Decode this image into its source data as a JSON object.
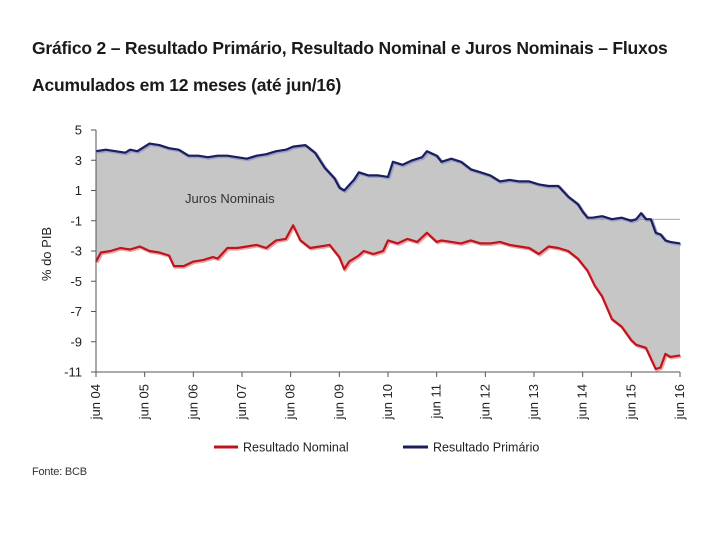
{
  "title": "Gráfico 2 – Resultado Primário, Resultado Nominal e Juros Nominais – Fluxos Acumulados em 12 meses (até jun/16)",
  "source": "Fonte: BCB",
  "chart_data": {
    "type": "area",
    "title": "Gráfico 2 – Resultado Primário, Resultado Nominal e Juros Nominais – Fluxos Acumulados em 12 meses (até jun/16)",
    "xlabel": "",
    "ylabel": "% do PIB",
    "ylim": [
      -11,
      5
    ],
    "yticks": [
      5,
      3,
      1,
      -1,
      -3,
      -5,
      -7,
      -9,
      -11
    ],
    "xlim": [
      2004.5,
      2016.5
    ],
    "xtick_labels": [
      "jun 04",
      "jun 05",
      "jun 06",
      "jun 07",
      "jun 08",
      "jun 09",
      "jun 10",
      "jun 11",
      "jun 12",
      "jun 13",
      "jun 14",
      "jun 15",
      "jun 16"
    ],
    "xtick_values": [
      2004.5,
      2005.5,
      2006.5,
      2007.5,
      2008.5,
      2009.5,
      2010.5,
      2011.5,
      2012.5,
      2013.5,
      2014.5,
      2015.5,
      2016.5
    ],
    "area_label": "Juros Nominais",
    "legend_position": "bottom",
    "colors": {
      "nominal": "#c0141c",
      "primario": "#1a1f5c",
      "juros": "#c6c6c6",
      "axis": "#555555"
    },
    "series": [
      {
        "name": "Resultado Nominal",
        "key": "nominal",
        "x": [
          2004.5,
          2004.6,
          2004.8,
          2005.0,
          2005.2,
          2005.4,
          2005.6,
          2005.8,
          2006.0,
          2006.1,
          2006.3,
          2006.5,
          2006.7,
          2006.9,
          2007.0,
          2007.2,
          2007.4,
          2007.6,
          2007.8,
          2008.0,
          2008.2,
          2008.4,
          2008.55,
          2008.7,
          2008.9,
          2009.1,
          2009.3,
          2009.5,
          2009.6,
          2009.7,
          2009.9,
          2010.0,
          2010.2,
          2010.4,
          2010.5,
          2010.7,
          2010.9,
          2011.1,
          2011.3,
          2011.5,
          2011.6,
          2011.8,
          2012.0,
          2012.2,
          2012.4,
          2012.6,
          2012.8,
          2013.0,
          2013.2,
          2013.4,
          2013.6,
          2013.8,
          2014.0,
          2014.2,
          2014.4,
          2014.6,
          2014.75,
          2014.9,
          2015.1,
          2015.3,
          2015.5,
          2015.6,
          2015.8,
          2015.9,
          2016.0,
          2016.1,
          2016.2,
          2016.3,
          2016.5
        ],
        "values": [
          -3.7,
          -3.1,
          -3.0,
          -2.8,
          -2.9,
          -2.7,
          -3.0,
          -3.1,
          -3.3,
          -4.0,
          -4.0,
          -3.7,
          -3.6,
          -3.4,
          -3.5,
          -2.8,
          -2.8,
          -2.7,
          -2.6,
          -2.8,
          -2.3,
          -2.2,
          -1.3,
          -2.3,
          -2.8,
          -2.7,
          -2.6,
          -3.4,
          -4.2,
          -3.7,
          -3.3,
          -3.0,
          -3.2,
          -3.0,
          -2.3,
          -2.5,
          -2.2,
          -2.4,
          -1.8,
          -2.4,
          -2.3,
          -2.4,
          -2.5,
          -2.3,
          -2.5,
          -2.5,
          -2.4,
          -2.6,
          -2.7,
          -2.8,
          -3.2,
          -2.7,
          -2.8,
          -3.0,
          -3.5,
          -4.3,
          -5.3,
          -6.0,
          -7.5,
          -8.0,
          -8.9,
          -9.2,
          -9.4,
          -10.1,
          -10.8,
          -10.7,
          -9.8,
          -10.0,
          -9.9
        ]
      },
      {
        "name": "Resultado Primário",
        "key": "primario",
        "x": [
          2004.5,
          2004.7,
          2004.9,
          2005.1,
          2005.2,
          2005.35,
          2005.6,
          2005.8,
          2006.0,
          2006.2,
          2006.4,
          2006.6,
          2006.8,
          2007.0,
          2007.2,
          2007.4,
          2007.6,
          2007.8,
          2008.0,
          2008.2,
          2008.4,
          2008.55,
          2008.8,
          2009.0,
          2009.2,
          2009.4,
          2009.5,
          2009.6,
          2009.8,
          2009.9,
          2010.1,
          2010.3,
          2010.5,
          2010.6,
          2010.8,
          2011.0,
          2011.2,
          2011.3,
          2011.5,
          2011.6,
          2011.8,
          2012.0,
          2012.2,
          2012.4,
          2012.6,
          2012.8,
          2013.0,
          2013.2,
          2013.4,
          2013.6,
          2013.8,
          2014.0,
          2014.2,
          2014.4,
          2014.5,
          2014.6,
          2014.7,
          2014.9,
          2015.1,
          2015.3,
          2015.5,
          2015.6,
          2015.7,
          2015.8,
          2015.9,
          2016.0,
          2016.1,
          2016.2,
          2016.3,
          2016.5
        ],
        "values": [
          3.6,
          3.7,
          3.6,
          3.5,
          3.7,
          3.6,
          4.1,
          4.0,
          3.8,
          3.7,
          3.3,
          3.3,
          3.2,
          3.3,
          3.3,
          3.2,
          3.1,
          3.3,
          3.4,
          3.6,
          3.7,
          3.9,
          4.0,
          3.5,
          2.5,
          1.8,
          1.2,
          1.0,
          1.7,
          2.2,
          2.0,
          2.0,
          1.9,
          2.9,
          2.7,
          3.0,
          3.2,
          3.6,
          3.3,
          2.9,
          3.1,
          2.9,
          2.4,
          2.2,
          2.0,
          1.6,
          1.7,
          1.6,
          1.6,
          1.4,
          1.3,
          1.3,
          0.6,
          0.1,
          -0.4,
          -0.8,
          -0.8,
          -0.7,
          -0.9,
          -0.8,
          -1.0,
          -0.9,
          -0.5,
          -0.9,
          -0.9,
          -1.8,
          -1.9,
          -2.3,
          -2.4,
          -2.5
        ]
      }
    ]
  }
}
